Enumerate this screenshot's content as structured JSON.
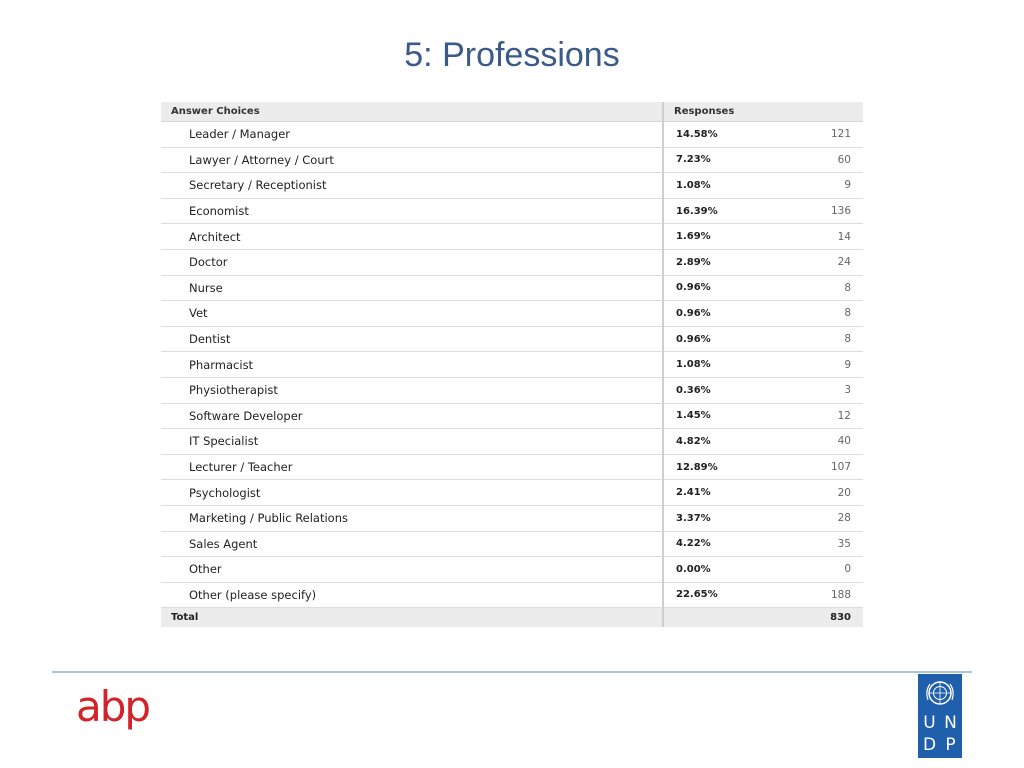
{
  "title": "5: Professions",
  "table": {
    "header_choices": "Answer Choices",
    "header_responses": "Responses",
    "rows": [
      {
        "choice": "Leader / Manager",
        "percent": "14.58%",
        "count": "121"
      },
      {
        "choice": "Lawyer / Attorney / Court",
        "percent": "7.23%",
        "count": "60"
      },
      {
        "choice": "Secretary / Receptionist",
        "percent": "1.08%",
        "count": "9"
      },
      {
        "choice": "Economist",
        "percent": "16.39%",
        "count": "136"
      },
      {
        "choice": "Architect",
        "percent": "1.69%",
        "count": "14"
      },
      {
        "choice": "Doctor",
        "percent": "2.89%",
        "count": "24"
      },
      {
        "choice": "Nurse",
        "percent": "0.96%",
        "count": "8"
      },
      {
        "choice": "Vet",
        "percent": "0.96%",
        "count": "8"
      },
      {
        "choice": "Dentist",
        "percent": "0.96%",
        "count": "8"
      },
      {
        "choice": "Pharmacist",
        "percent": "1.08%",
        "count": "9"
      },
      {
        "choice": "Physiotherapist",
        "percent": "0.36%",
        "count": "3"
      },
      {
        "choice": "Software Developer",
        "percent": "1.45%",
        "count": "12"
      },
      {
        "choice": "IT Specialist",
        "percent": "4.82%",
        "count": "40"
      },
      {
        "choice": "Lecturer / Teacher",
        "percent": "12.89%",
        "count": "107"
      },
      {
        "choice": "Psychologist",
        "percent": "2.41%",
        "count": "20"
      },
      {
        "choice": "Marketing / Public Relations",
        "percent": "3.37%",
        "count": "28"
      },
      {
        "choice": "Sales Agent",
        "percent": "4.22%",
        "count": "35"
      },
      {
        "choice": "Other",
        "percent": "0.00%",
        "count": "0"
      },
      {
        "choice": "Other (please specify)",
        "percent": "22.65%",
        "count": "188"
      }
    ],
    "total_label": "Total",
    "total_count": "830"
  },
  "footer": {
    "left_logo_text": "abp",
    "right_logo_letters": [
      "U",
      "N",
      "D",
      "P"
    ],
    "right_logo_color": "#1f5fab",
    "left_logo_color": "#d2232a",
    "emblem_icon": "un-emblem-icon"
  }
}
